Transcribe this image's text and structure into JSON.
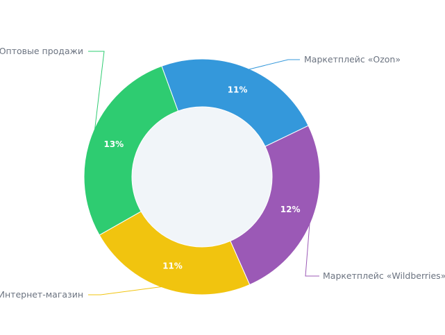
{
  "chart_data": {
    "type": "pie",
    "donut": true,
    "center_color": "#f1f5f9",
    "labels_on_slices": true,
    "legend": "none",
    "slices": [
      {
        "name": "Маркетплейс «Ozon»",
        "value": 11,
        "label": "11%",
        "color": "#3498db"
      },
      {
        "name": "Маркетплейс «Wildberries»",
        "value": 12,
        "label": "12%",
        "color": "#9b59b6"
      },
      {
        "name": "Интернет-магазин",
        "value": 11,
        "label": "11%",
        "color": "#f1c40f"
      },
      {
        "name": "Оптовые продажи",
        "value": 13,
        "label": "13%",
        "color": "#2ecc71"
      }
    ]
  }
}
